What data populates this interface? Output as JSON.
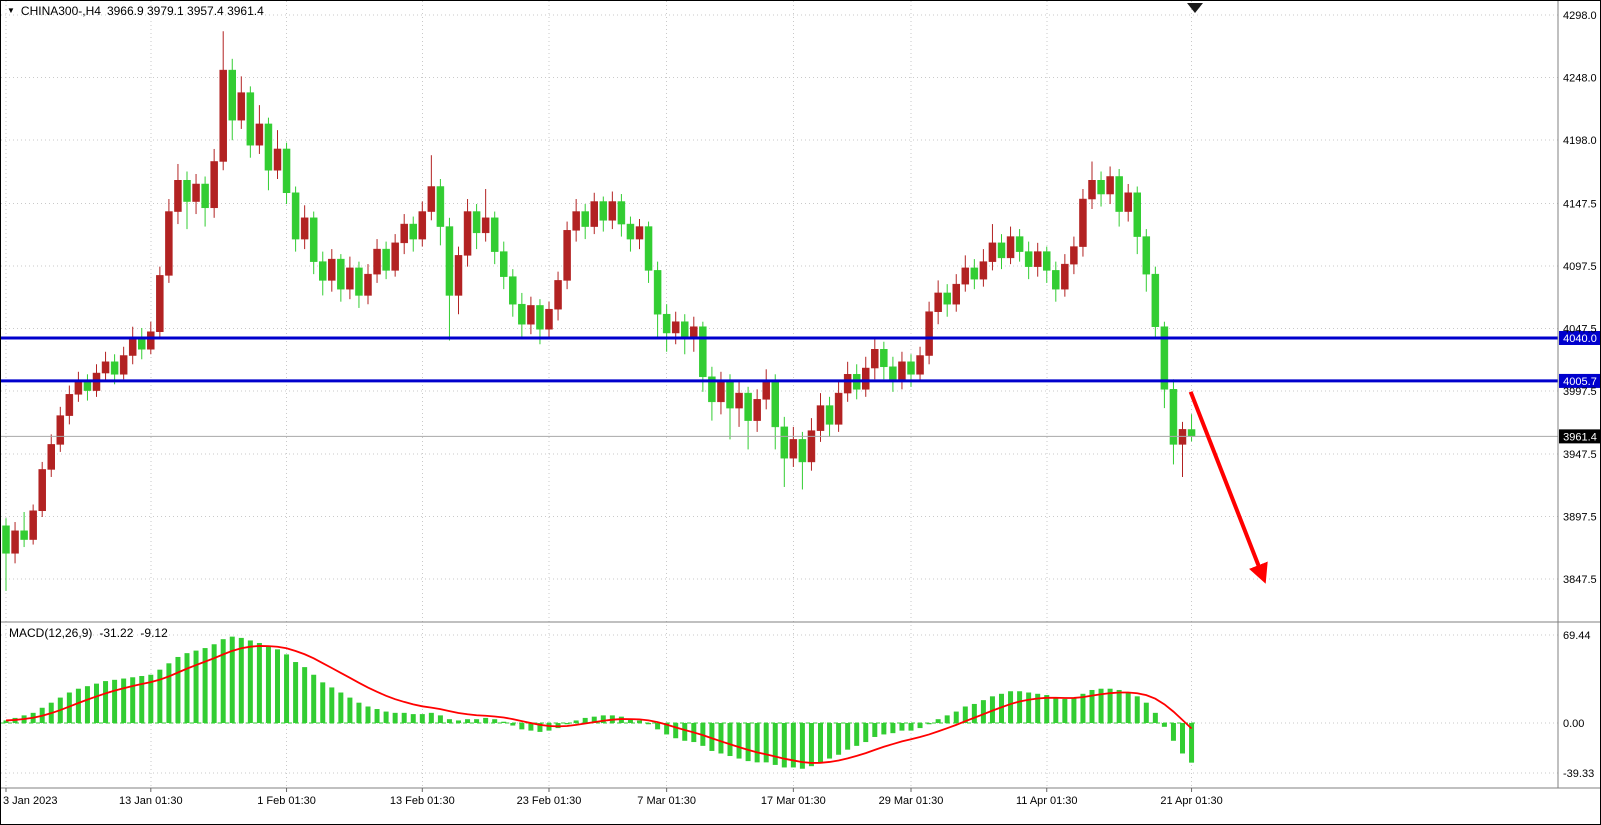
{
  "header": {
    "symbol": "CHINA300-,H4",
    "ohlc": "3966.9 3979.1 3957.4 3961.4"
  },
  "icons": {
    "header_triangle": "▼"
  },
  "macd_label": {
    "name": "MACD(12,26,9)",
    "main_value": "-31.22",
    "signal_value": "-9.12"
  },
  "chart_data": {
    "type": "candlestick",
    "symbol": "CHINA300-",
    "timeframe": "H4",
    "last_ohlc": {
      "open": 3966.9,
      "high": 3979.1,
      "low": 3957.4,
      "close": 3961.4
    },
    "y_axis": {
      "tick_labels": [
        "4298.0",
        "4248.0",
        "4198.0",
        "4147.5",
        "4097.5",
        "4047.5",
        "3997.5",
        "3947.5",
        "3897.5",
        "3847.5"
      ],
      "range": [
        3830,
        4310
      ]
    },
    "x_axis": {
      "tick_labels": [
        "3 Jan 2023",
        "13 Jan 01:30",
        "1 Feb 01:30",
        "13 Feb 01:30",
        "23 Feb 01:30",
        "7 Mar 01:30",
        "17 Mar 01:30",
        "29 Mar 01:30",
        "11 Apr 01:30",
        "21 Apr 01:30"
      ],
      "tick_candle_index": [
        0,
        16,
        31,
        46,
        60,
        73,
        87,
        100,
        115,
        131
      ]
    },
    "horizontal_levels": [
      {
        "price": 4040.0,
        "label": "4040.0"
      },
      {
        "price": 4005.7,
        "label": "4005.7"
      }
    ],
    "last_price": {
      "price": 3961.4,
      "label": "3961.4"
    },
    "trend_arrow": {
      "from": {
        "candle_index": 130.9,
        "price": 3997
      },
      "to": {
        "candle_index": 138.9,
        "price": 3849
      }
    },
    "candles_ohlc": [
      [
        3890,
        3896,
        3838,
        3868
      ],
      [
        3868,
        3893,
        3860,
        3886
      ],
      [
        3886,
        3901,
        3873,
        3879
      ],
      [
        3879,
        3907,
        3875,
        3902
      ],
      [
        3902,
        3941,
        3897,
        3935
      ],
      [
        3935,
        3963,
        3929,
        3955
      ],
      [
        3955,
        3985,
        3949,
        3978
      ],
      [
        3978,
        4002,
        3971,
        3995
      ],
      [
        3995,
        4013,
        3989,
        4006
      ],
      [
        4006,
        4011,
        3990,
        3998
      ],
      [
        3998,
        4019,
        3993,
        4012
      ],
      [
        4012,
        4029,
        4005,
        4021
      ],
      [
        4021,
        4027,
        4003,
        4011
      ],
      [
        4011,
        4033,
        4007,
        4026
      ],
      [
        4026,
        4049,
        4019,
        4041
      ],
      [
        4041,
        4048,
        4023,
        4031
      ],
      [
        4031,
        4053,
        4027,
        4045
      ],
      [
        4045,
        4097,
        4039,
        4090
      ],
      [
        4090,
        4151,
        4084,
        4141
      ],
      [
        4141,
        4179,
        4131,
        4166
      ],
      [
        4166,
        4173,
        4127,
        4149
      ],
      [
        4149,
        4171,
        4139,
        4163
      ],
      [
        4163,
        4169,
        4129,
        4144
      ],
      [
        4144,
        4191,
        4136,
        4181
      ],
      [
        4181,
        4285,
        4174,
        4254
      ],
      [
        4254,
        4263,
        4198,
        4214
      ],
      [
        4214,
        4249,
        4207,
        4236
      ],
      [
        4236,
        4241,
        4184,
        4194
      ],
      [
        4194,
        4226,
        4187,
        4211
      ],
      [
        4211,
        4216,
        4158,
        4174
      ],
      [
        4174,
        4206,
        4167,
        4191
      ],
      [
        4191,
        4196,
        4147,
        4156
      ],
      [
        4156,
        4161,
        4109,
        4119
      ],
      [
        4119,
        4146,
        4111,
        4136
      ],
      [
        4136,
        4141,
        4091,
        4101
      ],
      [
        4101,
        4109,
        4074,
        4086
      ],
      [
        4086,
        4111,
        4077,
        4103
      ],
      [
        4103,
        4107,
        4069,
        4079
      ],
      [
        4079,
        4105,
        4071,
        4096
      ],
      [
        4096,
        4101,
        4064,
        4074
      ],
      [
        4074,
        4099,
        4067,
        4091
      ],
      [
        4091,
        4119,
        4084,
        4111
      ],
      [
        4111,
        4117,
        4087,
        4094
      ],
      [
        4094,
        4123,
        4089,
        4116
      ],
      [
        4116,
        4139,
        4107,
        4131
      ],
      [
        4131,
        4137,
        4109,
        4119
      ],
      [
        4119,
        4149,
        4113,
        4141
      ],
      [
        4141,
        4186,
        4134,
        4161
      ],
      [
        4161,
        4167,
        4114,
        4129
      ],
      [
        4129,
        4136,
        4038,
        4074
      ],
      [
        4074,
        4113,
        4059,
        4106
      ],
      [
        4106,
        4151,
        4097,
        4141
      ],
      [
        4141,
        4147,
        4111,
        4124
      ],
      [
        4124,
        4159,
        4117,
        4136
      ],
      [
        4136,
        4141,
        4099,
        4109
      ],
      [
        4109,
        4117,
        4079,
        4089
      ],
      [
        4089,
        4095,
        4057,
        4067
      ],
      [
        4067,
        4076,
        4039,
        4051
      ],
      [
        4051,
        4073,
        4043,
        4066
      ],
      [
        4066,
        4071,
        4035,
        4047
      ],
      [
        4047,
        4069,
        4039,
        4063
      ],
      [
        4063,
        4093,
        4054,
        4086
      ],
      [
        4086,
        4133,
        4079,
        4126
      ],
      [
        4126,
        4151,
        4117,
        4141
      ],
      [
        4141,
        4147,
        4119,
        4129
      ],
      [
        4129,
        4156,
        4123,
        4149
      ],
      [
        4149,
        4153,
        4125,
        4134
      ],
      [
        4134,
        4157,
        4127,
        4149
      ],
      [
        4149,
        4155,
        4121,
        4131
      ],
      [
        4131,
        4137,
        4109,
        4119
      ],
      [
        4119,
        4135,
        4111,
        4129
      ],
      [
        4129,
        4133,
        4084,
        4094
      ],
      [
        4094,
        4101,
        4041,
        4059
      ],
      [
        4059,
        4067,
        4029,
        4044
      ],
      [
        4044,
        4061,
        4035,
        4053
      ],
      [
        4053,
        4059,
        4027,
        4039
      ],
      [
        4039,
        4057,
        4029,
        4049
      ],
      [
        4049,
        4053,
        3997,
        4009
      ],
      [
        4009,
        4017,
        3974,
        3989
      ],
      [
        3989,
        4013,
        3979,
        4006
      ],
      [
        4006,
        4011,
        3959,
        3984
      ],
      [
        3984,
        4005,
        3969,
        3996
      ],
      [
        3996,
        4001,
        3951,
        3974
      ],
      [
        3974,
        3999,
        3965,
        3991
      ],
      [
        3991,
        4015,
        3983,
        4006
      ],
      [
        4006,
        4011,
        3951,
        3969
      ],
      [
        3969,
        3977,
        3921,
        3944
      ],
      [
        3944,
        3969,
        3937,
        3959
      ],
      [
        3959,
        3965,
        3919,
        3941
      ],
      [
        3941,
        3976,
        3934,
        3966
      ],
      [
        3966,
        3996,
        3957,
        3986
      ],
      [
        3986,
        3993,
        3961,
        3971
      ],
      [
        3971,
        4005,
        3965,
        3996
      ],
      [
        3996,
        4021,
        3989,
        4011
      ],
      [
        4011,
        4019,
        3991,
        3999
      ],
      [
        3999,
        4025,
        3993,
        4016
      ],
      [
        4016,
        4041,
        4007,
        4031
      ],
      [
        4031,
        4037,
        4007,
        4017
      ],
      [
        4017,
        4025,
        3997,
        4007
      ],
      [
        4007,
        4029,
        3999,
        4021
      ],
      [
        4021,
        4027,
        4001,
        4011
      ],
      [
        4011,
        4033,
        4005,
        4026
      ],
      [
        4026,
        4069,
        4019,
        4061
      ],
      [
        4061,
        4086,
        4051,
        4076
      ],
      [
        4076,
        4083,
        4057,
        4067
      ],
      [
        4067,
        4091,
        4061,
        4083
      ],
      [
        4083,
        4106,
        4077,
        4096
      ],
      [
        4096,
        4103,
        4079,
        4087
      ],
      [
        4087,
        4111,
        4081,
        4101
      ],
      [
        4101,
        4131,
        4094,
        4116
      ],
      [
        4116,
        4123,
        4095,
        4104
      ],
      [
        4104,
        4129,
        4099,
        4121
      ],
      [
        4121,
        4127,
        4101,
        4109
      ],
      [
        4109,
        4117,
        4087,
        4097
      ],
      [
        4097,
        4116,
        4089,
        4109
      ],
      [
        4109,
        4113,
        4084,
        4094
      ],
      [
        4094,
        4101,
        4069,
        4079
      ],
      [
        4079,
        4107,
        4073,
        4099
      ],
      [
        4099,
        4121,
        4091,
        4113
      ],
      [
        4113,
        4159,
        4105,
        4151
      ],
      [
        4151,
        4181,
        4143,
        4166
      ],
      [
        4166,
        4173,
        4145,
        4155
      ],
      [
        4155,
        4177,
        4147,
        4169
      ],
      [
        4169,
        4175,
        4129,
        4141
      ],
      [
        4141,
        4163,
        4133,
        4156
      ],
      [
        4156,
        4161,
        4107,
        4121
      ],
      [
        4121,
        4127,
        4077,
        4091
      ],
      [
        4091,
        4097,
        4039,
        4049
      ],
      [
        4049,
        4053,
        3984,
        3999
      ],
      [
        3999,
        4007,
        3939,
        3955
      ],
      [
        3955,
        3973,
        3929,
        3967
      ],
      [
        3966.9,
        3979.1,
        3957.4,
        3961.4
      ]
    ],
    "macd": {
      "params": "12,26,9",
      "axis_tick_labels": [
        "69.44",
        "0.00",
        "-39.33"
      ],
      "last_main": -31.22,
      "last_signal": -9.12,
      "signal_period": 9,
      "histogram": [
        2,
        4,
        6,
        8,
        12,
        16,
        20,
        24,
        27,
        29,
        31,
        33,
        34,
        35,
        36,
        37,
        38,
        42,
        47,
        52,
        55,
        57,
        59,
        62,
        66,
        68,
        67,
        65,
        63,
        60,
        58,
        54,
        48,
        44,
        38,
        32,
        28,
        24,
        20,
        16,
        13,
        11,
        9,
        8,
        8,
        7,
        7,
        8,
        6,
        3,
        2,
        3,
        3,
        4,
        3,
        1,
        -2,
        -5,
        -6,
        -7,
        -6,
        -4,
        -1,
        2,
        4,
        5,
        6,
        6,
        5,
        3,
        2,
        -1,
        -5,
        -9,
        -12,
        -14,
        -15,
        -18,
        -22,
        -24,
        -26,
        -28,
        -30,
        -31,
        -31,
        -33,
        -35,
        -35,
        -36,
        -34,
        -31,
        -28,
        -25,
        -21,
        -18,
        -15,
        -11,
        -9,
        -8,
        -6,
        -6,
        -4,
        -1,
        3,
        6,
        9,
        13,
        15,
        18,
        21,
        23,
        25,
        25,
        24,
        23,
        22,
        20,
        19,
        20,
        23,
        26,
        27,
        27,
        26,
        24,
        21,
        16,
        8,
        -3,
        -14,
        -24,
        -31.22
      ]
    },
    "colors": {
      "up": "#B22222",
      "down": "#32CD32",
      "level_line": "#0000CD",
      "last_price_tag": "#000000",
      "macd_histogram": "#32CD32",
      "macd_signal": "#FF0000",
      "arrow": "#FF0000",
      "grid": "#c9c9c9",
      "background": "#FFFFFF"
    }
  }
}
